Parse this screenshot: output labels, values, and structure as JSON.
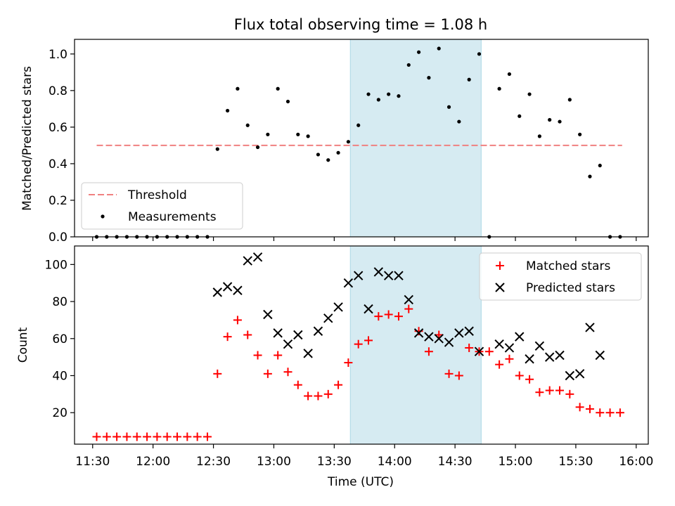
{
  "title": "Flux total observing time = 1.08 h",
  "chart_data": [
    {
      "type": "scatter",
      "panel": "top",
      "ylabel": "Matched/Predicted stars",
      "ylim": [
        0,
        1.08
      ],
      "y_ticks": [
        "0.0",
        "0.2",
        "0.4",
        "0.6",
        "0.8",
        "1.0"
      ],
      "y_tick_values": [
        0,
        0.2,
        0.4,
        0.6,
        0.8,
        1.0
      ],
      "shaded_interval": [
        "13:38",
        "14:43"
      ],
      "threshold": {
        "name": "Threshold",
        "value": 0.5,
        "x_start": "11:32",
        "x_end": "15:53",
        "color": "#f08080"
      },
      "series": [
        {
          "name": "Measurements",
          "color": "#000000",
          "marker": "dot",
          "x": [
            "11:32",
            "11:37",
            "11:42",
            "11:47",
            "11:52",
            "11:57",
            "12:02",
            "12:07",
            "12:12",
            "12:17",
            "12:22",
            "12:27",
            "12:32",
            "12:37",
            "12:42",
            "12:47",
            "12:52",
            "12:57",
            "13:02",
            "13:07",
            "13:12",
            "13:17",
            "13:22",
            "13:27",
            "13:32",
            "13:37",
            "13:42",
            "13:47",
            "13:52",
            "13:57",
            "14:02",
            "14:07",
            "14:12",
            "14:17",
            "14:22",
            "14:27",
            "14:32",
            "14:37",
            "14:42",
            "14:47",
            "14:52",
            "14:57",
            "15:02",
            "15:07",
            "15:12",
            "15:17",
            "15:22",
            "15:27",
            "15:32",
            "15:37",
            "15:42",
            "15:47",
            "15:52"
          ],
          "y": [
            0,
            0,
            0,
            0,
            0,
            0,
            0,
            0,
            0,
            0,
            0,
            0,
            0.48,
            0.69,
            0.81,
            0.61,
            0.49,
            0.56,
            0.81,
            0.74,
            0.56,
            0.55,
            0.45,
            0.42,
            0.46,
            0.52,
            0.61,
            0.78,
            0.75,
            0.78,
            0.77,
            0.94,
            1.01,
            0.87,
            1.03,
            0.71,
            0.63,
            0.86,
            1.0,
            0,
            0.81,
            0.89,
            0.66,
            0.78,
            0.55,
            0.64,
            0.63,
            0.75,
            0.56,
            0.33,
            0.39,
            0,
            0
          ]
        }
      ],
      "legend": {
        "position": "lower-left",
        "entries": [
          "Threshold",
          "Measurements"
        ]
      }
    },
    {
      "type": "scatter",
      "panel": "bottom",
      "xlabel": "Time (UTC)",
      "ylabel": "Count",
      "ylim": [
        3,
        110
      ],
      "xlim": [
        "11:21",
        "16:06"
      ],
      "x_ticks": [
        "11:30",
        "12:00",
        "12:30",
        "13:00",
        "13:30",
        "14:00",
        "14:30",
        "15:00",
        "15:30",
        "16:00"
      ],
      "y_ticks": [
        "20",
        "40",
        "60",
        "80",
        "100"
      ],
      "y_tick_values": [
        20,
        40,
        60,
        80,
        100
      ],
      "shaded_interval": [
        "13:38",
        "14:43"
      ],
      "series": [
        {
          "name": "Matched stars",
          "color": "#ff0000",
          "marker": "plus",
          "x": [
            "11:32",
            "11:37",
            "11:42",
            "11:47",
            "11:52",
            "11:57",
            "12:02",
            "12:07",
            "12:12",
            "12:17",
            "12:22",
            "12:27",
            "12:32",
            "12:37",
            "12:42",
            "12:47",
            "12:52",
            "12:57",
            "13:02",
            "13:07",
            "13:12",
            "13:17",
            "13:22",
            "13:27",
            "13:32",
            "13:37",
            "13:42",
            "13:47",
            "13:52",
            "13:57",
            "14:02",
            "14:07",
            "14:12",
            "14:17",
            "14:22",
            "14:27",
            "14:32",
            "14:37",
            "14:42",
            "14:47",
            "14:52",
            "14:57",
            "15:02",
            "15:07",
            "15:12",
            "15:17",
            "15:22",
            "15:27",
            "15:32",
            "15:37",
            "15:42",
            "15:47",
            "15:52"
          ],
          "y": [
            7,
            7,
            7,
            7,
            7,
            7,
            7,
            7,
            7,
            7,
            7,
            7,
            41,
            61,
            70,
            62,
            51,
            41,
            51,
            42,
            35,
            29,
            29,
            30,
            35,
            47,
            57,
            59,
            72,
            73,
            72,
            76,
            64,
            53,
            62,
            41,
            40,
            55,
            53,
            53,
            46,
            49,
            40,
            38,
            31,
            32,
            32,
            30,
            23,
            22,
            20,
            20,
            20
          ]
        },
        {
          "name": "Predicted stars",
          "color": "#000000",
          "marker": "x",
          "x": [
            "12:32",
            "12:37",
            "12:42",
            "12:47",
            "12:52",
            "12:57",
            "13:02",
            "13:07",
            "13:12",
            "13:17",
            "13:22",
            "13:27",
            "13:32",
            "13:37",
            "13:42",
            "13:47",
            "13:52",
            "13:57",
            "14:02",
            "14:07",
            "14:12",
            "14:17",
            "14:22",
            "14:27",
            "14:32",
            "14:37",
            "14:42",
            "14:52",
            "14:57",
            "15:02",
            "15:07",
            "15:12",
            "15:17",
            "15:22",
            "15:27",
            "15:32",
            "15:37",
            "15:42"
          ],
          "y": [
            85,
            88,
            86,
            102,
            104,
            73,
            63,
            57,
            62,
            52,
            64,
            71,
            77,
            90,
            94,
            76,
            96,
            94,
            94,
            81,
            63,
            61,
            60,
            58,
            63,
            64,
            53,
            57,
            55,
            61,
            49,
            56,
            50,
            51,
            40,
            41,
            66,
            51
          ]
        }
      ],
      "legend": {
        "position": "upper-right",
        "entries": [
          "Matched stars",
          "Predicted stars"
        ]
      }
    }
  ]
}
